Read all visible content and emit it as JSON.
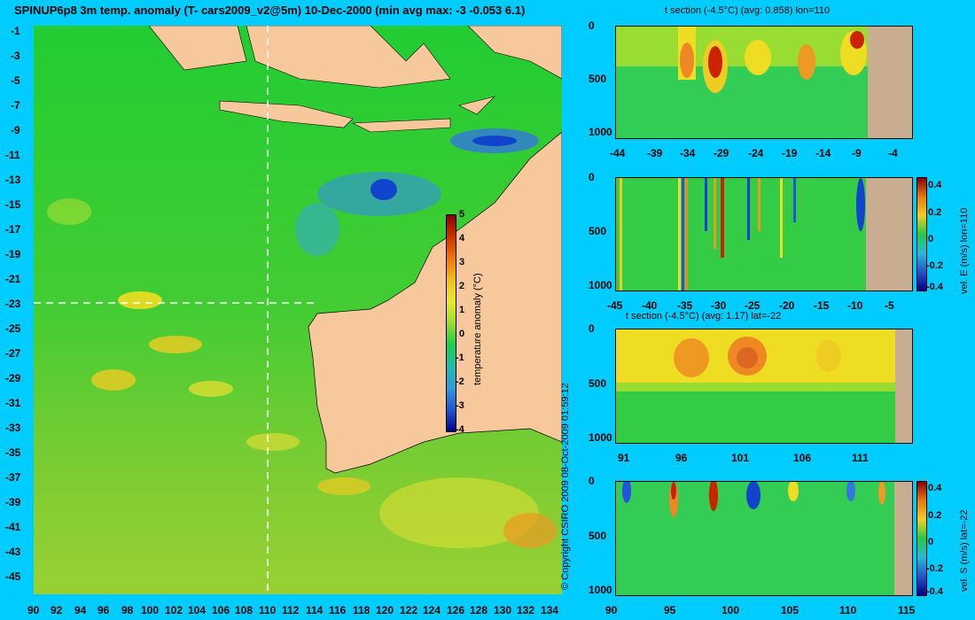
{
  "main": {
    "title": "SPINUP6p8 3m temp. anomaly (T- cars2009_v2@5m) 10-Dec-2000 (min avg max: -3 -0.053 6.1)",
    "lat_ticks": [
      "-1",
      "-3",
      "-5",
      "-7",
      "-9",
      "-11",
      "-13",
      "-15",
      "-17",
      "-19",
      "-21",
      "-23",
      "-25",
      "-27",
      "-29",
      "-31",
      "-33",
      "-35",
      "-37",
      "-39",
      "-41",
      "-43",
      "-45"
    ],
    "lon_ticks": [
      "90",
      "92",
      "94",
      "96",
      "98",
      "100",
      "102",
      "104",
      "106",
      "108",
      "110",
      "112",
      "114",
      "116",
      "118",
      "120",
      "122",
      "124",
      "126",
      "128",
      "130",
      "132",
      "134"
    ],
    "colorbar_ticks": [
      "5",
      "4",
      "3",
      "2",
      "1",
      "0",
      "-1",
      "-2",
      "-3",
      "-4"
    ],
    "colorbar_label": "temperature anomaly (°C)",
    "copyright": "© Copyright CSIRO 2009   08-Oct-2009 01:59:12"
  },
  "panels": {
    "t_lon": {
      "title": "t section (-4.5°C) (avg: 0.858) lon=110",
      "y_ticks": [
        "0",
        "500",
        "1000"
      ],
      "x_ticks": [
        "-44",
        "-39",
        "-34",
        "-29",
        "-24",
        "-19",
        "-14",
        "-9",
        "-4"
      ]
    },
    "v_lon": {
      "y_ticks": [
        "0",
        "500",
        "1000"
      ],
      "x_ticks": [
        "-45",
        "-40",
        "-35",
        "-30",
        "-25",
        "-20",
        "-15",
        "-10",
        "-5"
      ],
      "cb_ticks": [
        "0.4",
        "0.2",
        "0",
        "-0.2",
        "-0.4"
      ],
      "cb_label": "vel. E (m/s) lon=110"
    },
    "t_lat": {
      "title": "t section (-4.5°C) (avg: 1.17) lat=-22",
      "y_ticks": [
        "0",
        "500",
        "1000"
      ],
      "x_ticks": [
        "91",
        "96",
        "101",
        "106",
        "111"
      ]
    },
    "v_lat": {
      "y_ticks": [
        "0",
        "500",
        "1000"
      ],
      "x_ticks": [
        "90",
        "95",
        "100",
        "105",
        "110",
        "115"
      ],
      "cb_ticks": [
        "0.4",
        "0.2",
        "0",
        "-0.2",
        "-0.4"
      ],
      "cb_label": "vel. S (m/s) lat=-22"
    }
  }
}
